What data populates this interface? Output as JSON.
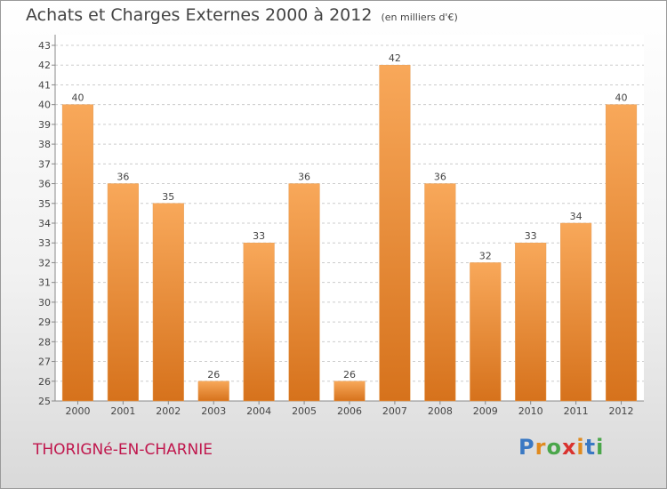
{
  "title": "Achats et Charges Externes 2000 à 2012",
  "unit": "(en milliers d'€)",
  "commune": "THORIGNé-EN-CHARNIE",
  "logo": {
    "letters": [
      "P",
      "r",
      "o",
      "x",
      "i",
      "t",
      "i"
    ],
    "colors": [
      "#3a78c3",
      "#e08a1e",
      "#4aa64a",
      "#d9322e",
      "#e08a1e",
      "#3a78c3",
      "#4aa64a"
    ]
  },
  "colors": {
    "bar_light": "#f8a85a",
    "bar_dark": "#d6721c",
    "axis": "#888888",
    "grid": "#cccccc",
    "text": "#444444",
    "commune": "#c0174d"
  },
  "chart_data": {
    "type": "bar",
    "categories": [
      "2000",
      "2001",
      "2002",
      "2003",
      "2004",
      "2005",
      "2006",
      "2007",
      "2008",
      "2009",
      "2010",
      "2011",
      "2012"
    ],
    "values": [
      40,
      36,
      35,
      26,
      33,
      36,
      26,
      42,
      36,
      32,
      33,
      34,
      40
    ],
    "data_labels": [
      "40",
      "36",
      "35",
      "26",
      "33",
      "36",
      "26",
      "42",
      "36",
      "32",
      "33",
      "34",
      "40"
    ],
    "yticks": [
      "25",
      "26",
      "27",
      "28",
      "29",
      "30",
      "31",
      "32",
      "33",
      "34",
      "35",
      "36",
      "37",
      "38",
      "39",
      "40",
      "41",
      "42",
      "43"
    ],
    "ylim": [
      25,
      43
    ],
    "grid": true
  }
}
